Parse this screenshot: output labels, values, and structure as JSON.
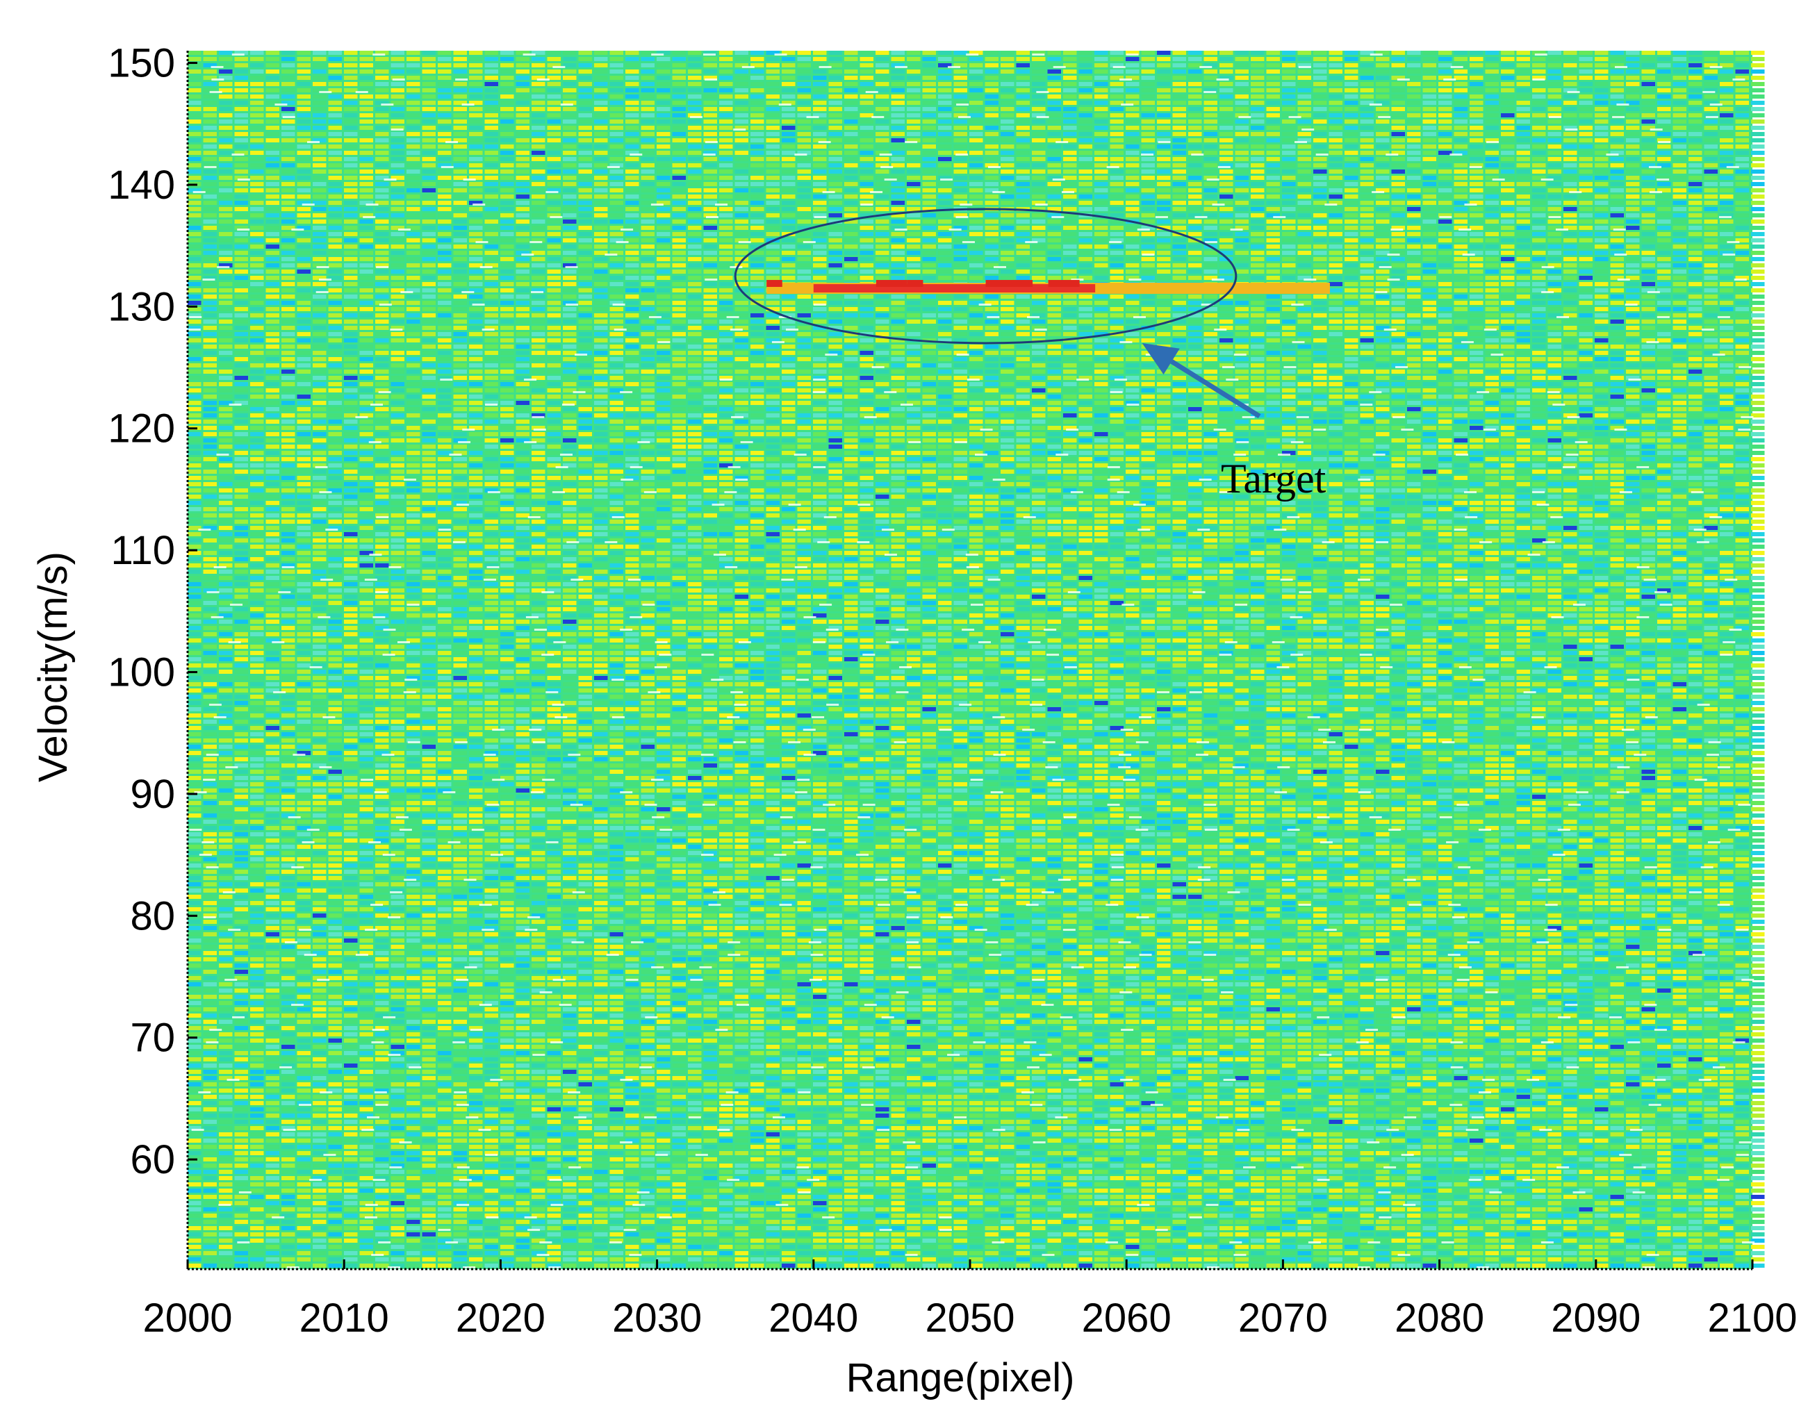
{
  "chart_data": {
    "type": "heatmap",
    "title": "",
    "xlabel": "Range(pixel)",
    "ylabel": "Velocity(m/s)",
    "xlim": [
      2000,
      2100
    ],
    "ylim": [
      51,
      151
    ],
    "xticks": [
      "2000",
      "2010",
      "2020",
      "2030",
      "2040",
      "2050",
      "2060",
      "2070",
      "2080",
      "2090",
      "2100"
    ],
    "yticks": [
      "60",
      "70",
      "80",
      "90",
      "100",
      "110",
      "120",
      "130",
      "140",
      "150"
    ],
    "colormap": "jet",
    "background_level": "noise (green / cyan / yellow)",
    "target_streak": {
      "velocity": 131.5,
      "range_start": 2037,
      "range_end": 2073,
      "peak_range": [
        2040,
        2058
      ],
      "color": "#e8322a"
    },
    "annotations": [
      {
        "text": "Target",
        "ellipse_center": [
          2051,
          132.5
        ],
        "ellipse_radius": [
          16,
          5.5
        ],
        "arrow_from": [
          2068.5,
          121
        ],
        "arrow_to": [
          2061,
          127
        ],
        "color": "#2e6db4"
      }
    ],
    "grid": false
  }
}
